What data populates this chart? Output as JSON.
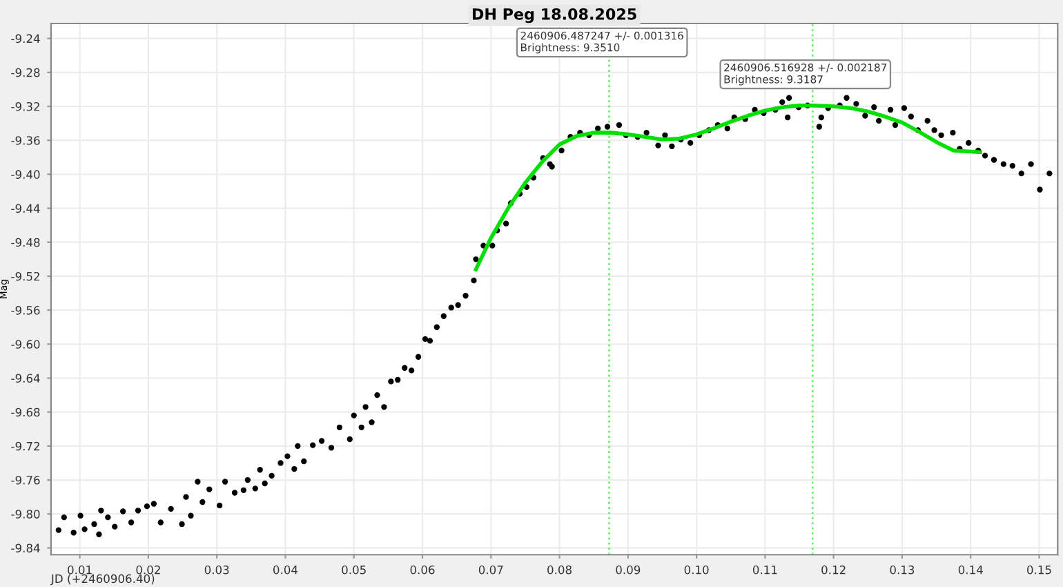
{
  "chart_data": {
    "type": "scatter",
    "title": "DH Peg 18.08.2025",
    "xlabel": "JD (+2460906.40)",
    "ylabel": "Mag",
    "xlim": [
      0.0058,
      0.1527
    ],
    "ylim": [
      -9.848,
      -9.2224
    ],
    "xticks": [
      {
        "value": 0.01,
        "label": "0.01"
      },
      {
        "value": 0.02,
        "label": "0.02"
      },
      {
        "value": 0.03,
        "label": "0.03"
      },
      {
        "value": 0.04,
        "label": "0.04"
      },
      {
        "value": 0.05,
        "label": "0.05"
      },
      {
        "value": 0.06,
        "label": "0.06"
      },
      {
        "value": 0.07,
        "label": "0.07"
      },
      {
        "value": 0.08,
        "label": "0.08"
      },
      {
        "value": 0.09,
        "label": "0.09"
      },
      {
        "value": 0.1,
        "label": "0.10"
      },
      {
        "value": 0.11,
        "label": "0.11"
      },
      {
        "value": 0.12,
        "label": "0.12"
      },
      {
        "value": 0.13,
        "label": "0.13"
      },
      {
        "value": 0.14,
        "label": "0.14"
      },
      {
        "value": 0.15,
        "label": "0.15"
      }
    ],
    "yticks": [
      {
        "value": -9.84,
        "label": "-9.84"
      },
      {
        "value": -9.8,
        "label": "-9.80"
      },
      {
        "value": -9.76,
        "label": "-9.76"
      },
      {
        "value": -9.72,
        "label": "-9.72"
      },
      {
        "value": -9.68,
        "label": "-9.68"
      },
      {
        "value": -9.64,
        "label": "-9.64"
      },
      {
        "value": -9.6,
        "label": "-9.60"
      },
      {
        "value": -9.56,
        "label": "-9.56"
      },
      {
        "value": -9.52,
        "label": "-9.52"
      },
      {
        "value": -9.48,
        "label": "-9.48"
      },
      {
        "value": -9.44,
        "label": "-9.44"
      },
      {
        "value": -9.4,
        "label": "-9.40"
      },
      {
        "value": -9.36,
        "label": "-9.36"
      },
      {
        "value": -9.32,
        "label": "-9.32"
      },
      {
        "value": -9.28,
        "label": "-9.28"
      },
      {
        "value": -9.24,
        "label": "-9.24"
      }
    ],
    "grid": true,
    "marker": "circle",
    "series": [
      {
        "color": "#000000",
        "x": [
          0.0069,
          0.0077,
          0.0091,
          0.0101,
          0.0107,
          0.0121,
          0.0128,
          0.0131,
          0.0141,
          0.0151,
          0.0163,
          0.0175,
          0.0185,
          0.0198,
          0.0208,
          0.0218,
          0.0233,
          0.0249,
          0.0255,
          0.0262,
          0.0272,
          0.0279,
          0.0289,
          0.0304,
          0.0312,
          0.0326,
          0.0339,
          0.0345,
          0.0356,
          0.0363,
          0.037,
          0.038,
          0.0393,
          0.0403,
          0.0413,
          0.0418,
          0.0427,
          0.044,
          0.0453,
          0.0467,
          0.0479,
          0.0494,
          0.05,
          0.0511,
          0.0517,
          0.0526,
          0.0534,
          0.0544,
          0.0554,
          0.0564,
          0.0574,
          0.0584,
          0.0594,
          0.0604,
          0.0611,
          0.0621,
          0.0631,
          0.0642,
          0.0652,
          0.0663,
          0.0675,
          0.0678,
          0.0689,
          0.0702,
          0.0709,
          0.0722,
          0.0729,
          0.0742,
          0.0752,
          0.0762,
          0.0776,
          0.0786,
          0.0789,
          0.0803,
          0.0816,
          0.083,
          0.0843,
          0.0856,
          0.087,
          0.0887,
          0.0897,
          0.0914,
          0.0927,
          0.0944,
          0.0954,
          0.0964,
          0.0977,
          0.0991,
          0.1004,
          0.1018,
          0.1031,
          0.1045,
          0.1055,
          0.1071,
          0.1085,
          0.1098,
          0.1115,
          0.1125,
          0.1135,
          0.1133,
          0.1149,
          0.1162,
          0.1179,
          0.1182,
          0.1192,
          0.1209,
          0.1219,
          0.1233,
          0.1246,
          0.1259,
          0.1266,
          0.1283,
          0.129,
          0.1303,
          0.1313,
          0.1323,
          0.1337,
          0.1347,
          0.1357,
          0.1374,
          0.1384,
          0.1397,
          0.1411,
          0.1421,
          0.1434,
          0.1448,
          0.1461,
          0.1474,
          0.1488,
          0.1501,
          0.1515
        ],
        "values": [
          -9.819,
          -9.804,
          -9.822,
          -9.802,
          -9.818,
          -9.812,
          -9.824,
          -9.796,
          -9.804,
          -9.815,
          -9.797,
          -9.81,
          -9.796,
          -9.791,
          -9.788,
          -9.81,
          -9.794,
          -9.812,
          -9.78,
          -9.802,
          -9.762,
          -9.786,
          -9.771,
          -9.79,
          -9.762,
          -9.775,
          -9.772,
          -9.76,
          -9.77,
          -9.748,
          -9.764,
          -9.755,
          -9.74,
          -9.732,
          -9.747,
          -9.72,
          -9.738,
          -9.719,
          -9.714,
          -9.722,
          -9.698,
          -9.712,
          -9.684,
          -9.698,
          -9.674,
          -9.692,
          -9.66,
          -9.674,
          -9.644,
          -9.642,
          -9.628,
          -9.631,
          -9.615,
          -9.594,
          -9.596,
          -9.58,
          -9.567,
          -9.557,
          -9.554,
          -9.543,
          -9.525,
          -9.5,
          -9.484,
          -9.484,
          -9.466,
          -9.458,
          -9.434,
          -9.423,
          -9.415,
          -9.404,
          -9.381,
          -9.388,
          -9.391,
          -9.372,
          -9.356,
          -9.351,
          -9.354,
          -9.346,
          -9.344,
          -9.342,
          -9.354,
          -9.356,
          -9.351,
          -9.366,
          -9.354,
          -9.367,
          -9.359,
          -9.363,
          -9.354,
          -9.348,
          -9.342,
          -9.346,
          -9.333,
          -9.335,
          -9.324,
          -9.328,
          -9.324,
          -9.315,
          -9.31,
          -9.333,
          -9.321,
          -9.319,
          -9.344,
          -9.333,
          -9.322,
          -9.319,
          -9.31,
          -9.317,
          -9.331,
          -9.321,
          -9.337,
          -9.324,
          -9.342,
          -9.322,
          -9.332,
          -9.348,
          -9.337,
          -9.348,
          -9.354,
          -9.351,
          -9.37,
          -9.363,
          -9.372,
          -9.378,
          -9.383,
          -9.388,
          -9.39,
          -9.399,
          -9.388,
          -9.418,
          -9.399
        ]
      },
      {
        "type": "line",
        "color": "#00e000",
        "marker": "none",
        "x": [
          0.0678,
          0.07,
          0.0725,
          0.075,
          0.0775,
          0.08,
          0.0825,
          0.085,
          0.0875,
          0.09,
          0.0925,
          0.095,
          0.0975,
          0.1,
          0.1025,
          0.105,
          0.1075,
          0.11,
          0.1125,
          0.115,
          0.117,
          0.12,
          0.1225,
          0.125,
          0.1275,
          0.13,
          0.1325,
          0.135,
          0.1375,
          0.1414
        ],
        "values": [
          -9.512,
          -9.475,
          -9.44,
          -9.41,
          -9.385,
          -9.365,
          -9.355,
          -9.351,
          -9.351,
          -9.353,
          -9.356,
          -9.359,
          -9.358,
          -9.353,
          -9.346,
          -9.338,
          -9.331,
          -9.325,
          -9.321,
          -9.319,
          -9.319,
          -9.32,
          -9.322,
          -9.326,
          -9.332,
          -9.339,
          -9.35,
          -9.362,
          -9.372,
          -9.374
        ]
      }
    ],
    "ref_lines": [
      {
        "axis": "x",
        "value": 0.087247,
        "color": "#66ee66",
        "line_style": "dotted"
      },
      {
        "axis": "x",
        "value": 0.116928,
        "color": "#66ee66",
        "line_style": "dotted"
      }
    ],
    "annotations": [
      "2460906.487247 +/- 0.001316\nBrightness: 9.3510",
      "2460906.516928 +/- 0.002187\nBrightness: 9.3187"
    ]
  }
}
